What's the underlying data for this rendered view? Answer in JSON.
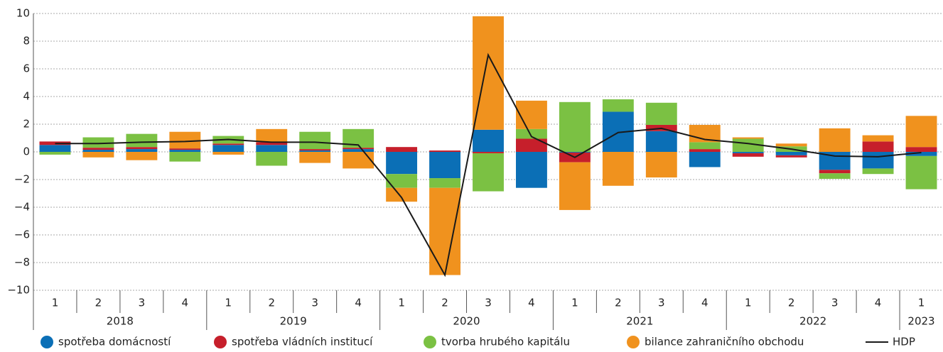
{
  "chart_data": {
    "type": "bar",
    "stacked": true,
    "categories": [
      "1",
      "2",
      "3",
      "4",
      "1",
      "2",
      "3",
      "4",
      "1",
      "2",
      "3",
      "4",
      "1",
      "2",
      "3",
      "4",
      "1",
      "2",
      "3",
      "4",
      "1"
    ],
    "years": [
      "2018",
      "2019",
      "2020",
      "2021",
      "2022",
      "2023"
    ],
    "ylim": [
      -10,
      10
    ],
    "yticks": [
      {
        "value": -10,
        "label": "−10"
      },
      {
        "value": -8,
        "label": "−8"
      },
      {
        "value": -6,
        "label": "−6"
      },
      {
        "value": -4,
        "label": "−4"
      },
      {
        "value": -2,
        "label": "−2"
      },
      0,
      2,
      4,
      6,
      8,
      10
    ],
    "grid": true,
    "series": [
      {
        "name": "spotřeba domácností",
        "color": "#0b6fb6",
        "values": [
          0.5,
          0.15,
          0.2,
          0.15,
          0.5,
          0.5,
          0.1,
          0.2,
          -1.6,
          -1.9,
          1.6,
          -2.6,
          -0.05,
          2.9,
          1.5,
          -1.1,
          -0.1,
          -0.25,
          -1.3,
          -1.2,
          -0.3
        ]
      },
      {
        "name": "spotřeba vládních institucí",
        "color": "#c61f2b",
        "values": [
          0.25,
          0.15,
          0.15,
          0.1,
          0.1,
          0.2,
          0.1,
          0.1,
          0.35,
          0.1,
          -0.1,
          0.95,
          -0.7,
          0,
          0.45,
          0.2,
          -0.25,
          -0.15,
          -0.25,
          0.75,
          0.35
        ]
      },
      {
        "name": "tvorba hrubého kapitálu",
        "color": "#7bc143",
        "values": [
          -0.2,
          0.75,
          0.95,
          -0.7,
          0.55,
          -1.0,
          1.25,
          1.35,
          -1.0,
          -0.7,
          -2.75,
          0.7,
          3.6,
          0.9,
          1.6,
          0.5,
          0.95,
          0.4,
          -0.4,
          -0.4,
          -2.4
        ]
      },
      {
        "name": "bilance zahraničního obchodu",
        "color": "#f0921e",
        "values": [
          0,
          -0.4,
          -0.6,
          1.2,
          -0.2,
          0.95,
          -0.8,
          -1.2,
          -1.0,
          -6.3,
          8.2,
          2.05,
          -3.45,
          -2.45,
          -1.85,
          1.25,
          0.1,
          0.2,
          1.7,
          0.45,
          2.25
        ]
      }
    ],
    "line": {
      "name": "HDP",
      "color": "#1a1a1a",
      "values": [
        0.6,
        0.6,
        0.7,
        0.75,
        0.9,
        0.7,
        0.7,
        0.5,
        -3.3,
        -8.9,
        7.0,
        1.1,
        -0.4,
        1.4,
        1.7,
        0.9,
        0.6,
        0.2,
        -0.3,
        -0.35,
        -0.05
      ]
    }
  }
}
